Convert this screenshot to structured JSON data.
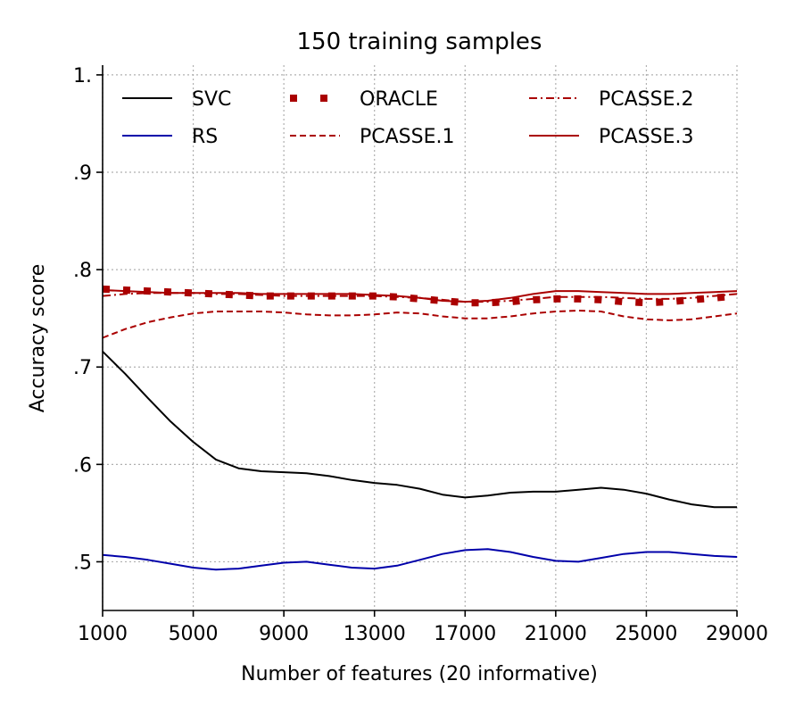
{
  "chart_data": {
    "type": "line",
    "title": "150 training samples",
    "xlabel": "Number of features (20 informative)",
    "ylabel": "Accuracy score",
    "xlim": [
      1000,
      29000
    ],
    "ylim": [
      0.45,
      1.01
    ],
    "x_ticks": [
      1000,
      5000,
      9000,
      13000,
      17000,
      21000,
      25000,
      29000
    ],
    "x_tick_labels": [
      "1000",
      "5000",
      "9000",
      "13000",
      "17000",
      "21000",
      "25000",
      "29000"
    ],
    "y_ticks": [
      0.5,
      0.6,
      0.7,
      0.8,
      0.9,
      1.0
    ],
    "y_tick_labels": [
      ".5",
      ".6",
      ".7",
      ".8",
      ".9",
      "1."
    ],
    "grid": true,
    "legend_position": "top",
    "x": [
      1000,
      2000,
      3000,
      4000,
      5000,
      6000,
      7000,
      8000,
      9000,
      10000,
      11000,
      12000,
      13000,
      14000,
      15000,
      16000,
      17000,
      18000,
      19000,
      20000,
      21000,
      22000,
      23000,
      24000,
      25000,
      26000,
      27000,
      28000,
      29000
    ],
    "series": [
      {
        "name": "SVC",
        "color": "#000000",
        "style": "solid",
        "values": [
          0.716,
          0.693,
          0.668,
          0.644,
          0.623,
          0.605,
          0.596,
          0.593,
          0.592,
          0.591,
          0.588,
          0.584,
          0.581,
          0.579,
          0.575,
          0.569,
          0.566,
          0.568,
          0.571,
          0.572,
          0.572,
          0.574,
          0.576,
          0.574,
          0.57,
          0.564,
          0.559,
          0.556,
          0.556
        ]
      },
      {
        "name": "RS",
        "color": "#0000aa",
        "style": "solid",
        "values": [
          0.507,
          0.505,
          0.502,
          0.498,
          0.494,
          0.492,
          0.493,
          0.496,
          0.499,
          0.5,
          0.497,
          0.494,
          0.493,
          0.496,
          0.502,
          0.508,
          0.512,
          0.513,
          0.51,
          0.505,
          0.501,
          0.5,
          0.504,
          0.508,
          0.51,
          0.51,
          0.508,
          0.506,
          0.505
        ]
      },
      {
        "name": "ORACLE",
        "color": "#aa0000",
        "style": "dotted-square",
        "values": [
          0.78,
          0.779,
          0.778,
          0.777,
          0.776,
          0.775,
          0.774,
          0.773,
          0.773,
          0.773,
          0.773,
          0.773,
          0.773,
          0.772,
          0.77,
          0.768,
          0.766,
          0.766,
          0.767,
          0.769,
          0.77,
          0.77,
          0.769,
          0.767,
          0.766,
          0.767,
          0.769,
          0.771,
          0.773
        ]
      },
      {
        "name": "PCASSE.1",
        "color": "#aa0000",
        "style": "dashed",
        "values": [
          0.73,
          0.739,
          0.746,
          0.751,
          0.755,
          0.757,
          0.757,
          0.757,
          0.756,
          0.754,
          0.753,
          0.753,
          0.754,
          0.756,
          0.755,
          0.752,
          0.75,
          0.75,
          0.752,
          0.755,
          0.757,
          0.758,
          0.757,
          0.752,
          0.749,
          0.748,
          0.749,
          0.752,
          0.755
        ]
      },
      {
        "name": "PCASSE.2",
        "color": "#aa0000",
        "style": "dashdot",
        "values": [
          0.773,
          0.775,
          0.776,
          0.776,
          0.776,
          0.775,
          0.775,
          0.774,
          0.773,
          0.773,
          0.773,
          0.773,
          0.773,
          0.772,
          0.771,
          0.769,
          0.767,
          0.767,
          0.768,
          0.77,
          0.772,
          0.772,
          0.772,
          0.771,
          0.77,
          0.77,
          0.771,
          0.773,
          0.775
        ]
      },
      {
        "name": "PCASSE.3",
        "color": "#aa0000",
        "style": "solid",
        "values": [
          0.779,
          0.778,
          0.777,
          0.776,
          0.776,
          0.776,
          0.776,
          0.775,
          0.775,
          0.775,
          0.775,
          0.775,
          0.774,
          0.773,
          0.771,
          0.768,
          0.767,
          0.768,
          0.771,
          0.775,
          0.778,
          0.778,
          0.777,
          0.776,
          0.775,
          0.775,
          0.776,
          0.777,
          0.778
        ]
      }
    ]
  }
}
